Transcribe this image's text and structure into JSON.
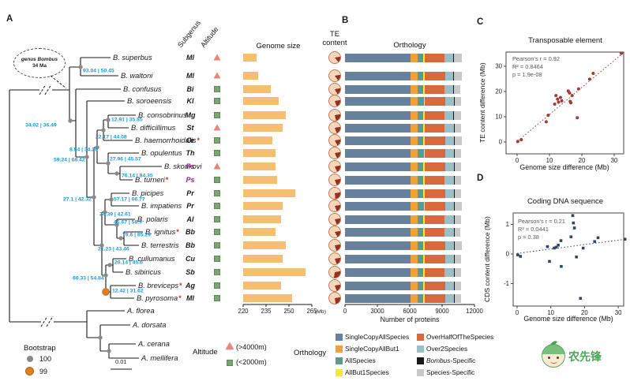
{
  "panels": {
    "a": "A",
    "b": "B",
    "c": "C",
    "d": "D"
  },
  "tree": {
    "bubble_line1": "genus Bombus",
    "bubble_line2": "34 Ma",
    "node_labels": [
      "93.04 | 50.45",
      "34.02 | 36.49",
      "12.91 | 35.85",
      "22.17 | 44.08",
      "8.54 | 34.26",
      "59.24 | 68.42",
      "27.96 | 45.57",
      "76.14 | 84.35",
      "27.1 | 42.32",
      "57.17 | 66.77",
      "24.39 | 42.61",
      "45.67 | 58.3",
      "79.6 | 85.29",
      "21.23 | 43.46",
      "20.14 | 45.6",
      "60.33 | 54.84",
      "12.42 | 31.62"
    ],
    "outgroup": [
      "A. florea",
      "A. dorsata",
      "A. cerana",
      "A. mellifera"
    ],
    "bootstrap": {
      "title": "Bootstrap",
      "level1": "100",
      "level2": "99"
    },
    "scale_bar": "0.01",
    "star_symbol": "*"
  },
  "headers": {
    "subgenus": "Subgenus",
    "altitude": "Altitude",
    "genome": "Genome size",
    "te1": "TE",
    "te2": "content",
    "orthology": "Orthology"
  },
  "species": [
    {
      "name": "B. superbus",
      "star": false,
      "subgenus": "Ml",
      "ps": false,
      "altitude": "high"
    },
    {
      "name": "B. waltoni",
      "star": false,
      "subgenus": "Ml",
      "ps": false,
      "altitude": "high"
    },
    {
      "name": "B. confusus",
      "star": false,
      "subgenus": "Bi",
      "ps": false,
      "altitude": "low"
    },
    {
      "name": "B. soroeensis",
      "star": false,
      "subgenus": "Kl",
      "ps": false,
      "altitude": "low"
    },
    {
      "name": "B. consobrinus",
      "star": false,
      "subgenus": "Mg",
      "ps": false,
      "altitude": "low"
    },
    {
      "name": "B. difficillimus",
      "star": false,
      "subgenus": "St",
      "ps": false,
      "altitude": "high"
    },
    {
      "name": "B. haemorrhoidalis",
      "star": true,
      "subgenus": "Or",
      "ps": false,
      "altitude": "low"
    },
    {
      "name": "B. opulentus",
      "star": false,
      "subgenus": "Th",
      "ps": false,
      "altitude": "low"
    },
    {
      "name": "B. skorikovi",
      "star": false,
      "subgenus": "Ps",
      "ps": true,
      "altitude": "high"
    },
    {
      "name": "B. turneri",
      "star": true,
      "subgenus": "Ps",
      "ps": true,
      "altitude": "low"
    },
    {
      "name": "B. picipes",
      "star": false,
      "subgenus": "Pr",
      "ps": false,
      "altitude": "low"
    },
    {
      "name": "B. impatiens",
      "star": false,
      "subgenus": "Pr",
      "ps": false,
      "altitude": "low"
    },
    {
      "name": "B. polaris",
      "star": false,
      "subgenus": "Al",
      "ps": false,
      "altitude": "low"
    },
    {
      "name": "B. ignitus",
      "star": true,
      "subgenus": "Bb",
      "ps": false,
      "altitude": "low"
    },
    {
      "name": "B. terrestris",
      "star": false,
      "subgenus": "Bb",
      "ps": false,
      "altitude": "low"
    },
    {
      "name": "B. cullumanus",
      "star": false,
      "subgenus": "Cu",
      "ps": false,
      "altitude": "low"
    },
    {
      "name": "B. sibiricus",
      "star": false,
      "subgenus": "Sb",
      "ps": false,
      "altitude": "low"
    },
    {
      "name": "B. breviceps",
      "star": true,
      "subgenus": "Ag",
      "ps": false,
      "altitude": "low"
    },
    {
      "name": "B. pyrosoma",
      "star": true,
      "subgenus": "Ml",
      "ps": false,
      "altitude": "low"
    }
  ],
  "genome_axis": {
    "ticks": [
      220,
      235,
      250,
      265
    ],
    "unit": "(Mb)"
  },
  "orthology_axis": {
    "ticks": [
      0,
      3000,
      6000,
      9000,
      12000
    ],
    "xlabel": "Number of proteins"
  },
  "legends": {
    "altitude": {
      "title": "Altitude",
      "high": "(>4000m)",
      "low": "(<2000m)"
    },
    "orthology_title": "Orthology",
    "orthology_items": [
      {
        "prefix": "",
        "label": "SingleCopyAllSpecies",
        "color": "#67809C"
      },
      {
        "prefix": "",
        "label": "SingleCopyAllBut1",
        "color": "#F0A03C"
      },
      {
        "prefix": "",
        "label": "AllSpecies",
        "color": "#5E9A8C"
      },
      {
        "prefix": "",
        "label": "AllBut1Species",
        "color": "#F5E73C"
      },
      {
        "prefix": "",
        "label": "OverHalfOfTheSpecies",
        "color": "#D8693E"
      },
      {
        "prefix": "",
        "label": "Over2Species",
        "color": "#9BBFC8"
      },
      {
        "prefix": "Bombus",
        "label": "-Specific",
        "color": "#1A1A1A"
      },
      {
        "prefix": "",
        "label": "Species-Specific",
        "color": "#C9C9C9"
      }
    ]
  },
  "scatter_te": {
    "title": "Transposable element",
    "xlabel": "Genome size difference (Mb)",
    "ylabel": "TE content difference (Mb)",
    "stats": [
      "Pearson's r = 0.92",
      "R² = 0.8464",
      "p = 1.9e-08"
    ],
    "xticks": [
      0,
      10,
      20,
      30
    ],
    "yticks": [
      0,
      10,
      20,
      30
    ],
    "point_color": "#A03B35",
    "points": [
      [
        0.2,
        0.2
      ],
      [
        1.3,
        0.9
      ],
      [
        9,
        8
      ],
      [
        9.6,
        10.6
      ],
      [
        11.6,
        15
      ],
      [
        12,
        18.4
      ],
      [
        12.5,
        17
      ],
      [
        12.8,
        15.8
      ],
      [
        13.4,
        17.6
      ],
      [
        13.8,
        16.3
      ],
      [
        15.8,
        20.2
      ],
      [
        16.2,
        19.4
      ],
      [
        16.4,
        16.1
      ],
      [
        16.6,
        15.5
      ],
      [
        17,
        18.4
      ],
      [
        18.6,
        9.6
      ],
      [
        19,
        21
      ],
      [
        22.4,
        24.9
      ],
      [
        23.5,
        27.2
      ],
      [
        32.2,
        35.1
      ]
    ],
    "trend": [
      [
        0.3,
        0.5
      ],
      [
        32.8,
        35.3
      ]
    ]
  },
  "scatter_cds": {
    "title": "Coding DNA sequence",
    "xlabel": "Genome size difference (Mb)",
    "ylabel": "CDS content difference (Mb)",
    "stats": [
      "Pearson's r = 0.21",
      "R² = 0.0441",
      "p = 0.38"
    ],
    "xticks": [
      0,
      10,
      20,
      30
    ],
    "yticks": [
      1,
      0,
      -1
    ],
    "point_color": "#33475F",
    "points": [
      [
        0.2,
        -0.03
      ],
      [
        1,
        -0.08
      ],
      [
        9,
        0.25
      ],
      [
        9.6,
        -0.25
      ],
      [
        11,
        0.2
      ],
      [
        11.6,
        0.23
      ],
      [
        12.2,
        0.3
      ],
      [
        13,
        0.45
      ],
      [
        13.1,
        -0.42
      ],
      [
        16,
        0.58
      ],
      [
        16.5,
        1.3
      ],
      [
        16.7,
        1.05
      ],
      [
        17,
        0.88
      ],
      [
        17.6,
        -0.1
      ],
      [
        18.8,
        -1.5
      ],
      [
        19.6,
        0.2
      ],
      [
        23,
        0.42
      ],
      [
        24,
        0.55
      ],
      [
        32,
        0.5
      ]
    ],
    "trend": [
      [
        0,
        0.02
      ],
      [
        31.5,
        0.49
      ]
    ]
  },
  "watermark": "农先锋",
  "chart_data": [
    {
      "type": "bar",
      "title": "Genome size",
      "xlabel": "Genome size (Mb)",
      "xlim": [
        220,
        265
      ],
      "categories": [
        "B. superbus",
        "B. waltoni",
        "B. confusus",
        "B. soroeensis",
        "B. consobrinus",
        "B. difficillimus",
        "B. haemorrhoidalis",
        "B. opulentus",
        "B. skorikovi",
        "B. turneri",
        "B. picipes",
        "B. impatiens",
        "B. polaris",
        "B. ignitus",
        "B. terrestris",
        "B. cullumanus",
        "B. sibiricus",
        "B. breviceps",
        "B. pyrosoma"
      ],
      "values": [
        229,
        230,
        238,
        243,
        248,
        246,
        239,
        241,
        241,
        242,
        254,
        246,
        245,
        241,
        248,
        246,
        261,
        245,
        252
      ]
    },
    {
      "type": "pie",
      "title": "TE content",
      "unit": "percent of genome",
      "categories": [
        "B. superbus",
        "B. waltoni",
        "B. confusus",
        "B. soroeensis",
        "B. consobrinus",
        "B. difficillimus",
        "B. haemorrhoidalis",
        "B. opulentus",
        "B. skorikovi",
        "B. turneri",
        "B. picipes",
        "B. impatiens",
        "B. polaris",
        "B. ignitus",
        "B. terrestris",
        "B. cullumanus",
        "B. sibiricus",
        "B. breviceps",
        "B. pyrosoma"
      ],
      "values": [
        17,
        18,
        20,
        22,
        24,
        22,
        20,
        21,
        21,
        22,
        26,
        22,
        22,
        20,
        23,
        22,
        30,
        22,
        25
      ]
    },
    {
      "type": "bar",
      "stacked": true,
      "title": "Orthology",
      "xlabel": "Number of proteins",
      "xlim": [
        0,
        12000
      ],
      "categories": [
        "B. superbus",
        "B. waltoni",
        "B. confusus",
        "B. soroeensis",
        "B. consobrinus",
        "B. difficillimus",
        "B. haemorrhoidalis",
        "B. opulentus",
        "B. skorikovi",
        "B. turneri",
        "B. picipes",
        "B. impatiens",
        "B. polaris",
        "B. ignitus",
        "B. terrestris",
        "B. cullumanus",
        "B. sibiricus",
        "B. breviceps",
        "B. pyrosoma"
      ],
      "series": [
        {
          "name": "SingleCopyAllSpecies",
          "values": [
            6100,
            6100,
            6080,
            6090,
            6070,
            6080,
            6060,
            6090,
            6080,
            6070,
            6060,
            6100,
            6070,
            6080,
            6090,
            6070,
            6060,
            6080,
            6070
          ]
        },
        {
          "name": "SingleCopyAllBut1",
          "values": [
            640,
            650,
            650,
            660,
            650,
            660,
            650,
            660,
            650,
            660,
            650,
            660,
            650,
            660,
            650,
            660,
            650,
            660,
            650
          ]
        },
        {
          "name": "AllSpecies",
          "values": [
            520,
            530,
            540,
            540,
            550,
            540,
            550,
            540,
            540,
            550,
            550,
            540,
            550,
            540,
            540,
            550,
            550,
            540,
            550
          ]
        },
        {
          "name": "AllBut1Species",
          "values": [
            110,
            110,
            110,
            110,
            110,
            110,
            110,
            110,
            110,
            110,
            110,
            110,
            110,
            110,
            110,
            110,
            110,
            110,
            110
          ]
        },
        {
          "name": "OverHalfOfTheSpecies",
          "values": [
            1880,
            1870,
            1860,
            1880,
            1850,
            1860,
            1900,
            1870,
            1880,
            1860,
            1890,
            1880,
            1870,
            1860,
            1900,
            1870,
            1880,
            1870,
            1890
          ]
        },
        {
          "name": "Over2Species",
          "values": [
            800,
            790,
            820,
            810,
            830,
            820,
            840,
            820,
            830,
            820,
            830,
            810,
            830,
            820,
            840,
            820,
            830,
            820,
            830
          ]
        },
        {
          "name": "Bombus-Specific",
          "values": [
            70,
            70,
            70,
            70,
            70,
            70,
            70,
            70,
            70,
            70,
            70,
            70,
            70,
            70,
            70,
            70,
            70,
            70,
            70
          ]
        },
        {
          "name": "Species-Specific",
          "values": [
            720,
            700,
            560,
            620,
            640,
            650,
            680,
            600,
            590,
            610,
            580,
            630,
            600,
            570,
            650,
            590,
            620,
            600,
            610
          ]
        }
      ]
    },
    {
      "type": "scatter",
      "title": "Transposable element",
      "xlabel": "Genome size difference (Mb)",
      "ylabel": "TE content difference (Mb)",
      "xlim": [
        0,
        33
      ],
      "ylim": [
        0,
        36
      ],
      "annotations": [
        "Pearson's r = 0.92",
        "R² = 0.8464",
        "p = 1.9e-08"
      ],
      "points": [
        [
          0.2,
          0.2
        ],
        [
          1.3,
          0.9
        ],
        [
          9,
          8
        ],
        [
          9.6,
          10.6
        ],
        [
          11.6,
          15
        ],
        [
          12,
          18.4
        ],
        [
          12.5,
          17
        ],
        [
          12.8,
          15.8
        ],
        [
          13.4,
          17.6
        ],
        [
          13.8,
          16.3
        ],
        [
          15.8,
          20.2
        ],
        [
          16.2,
          19.4
        ],
        [
          16.4,
          16.1
        ],
        [
          16.6,
          15.5
        ],
        [
          17,
          18.4
        ],
        [
          18.6,
          9.6
        ],
        [
          19,
          21
        ],
        [
          22.4,
          24.9
        ],
        [
          23.5,
          27.2
        ],
        [
          32.2,
          35.1
        ]
      ]
    },
    {
      "type": "scatter",
      "title": "Coding DNA sequence",
      "xlabel": "Genome size difference (Mb)",
      "ylabel": "CDS content difference (Mb)",
      "xlim": [
        0,
        33
      ],
      "ylim": [
        -1.6,
        1.5
      ],
      "annotations": [
        "Pearson's r = 0.21",
        "R² = 0.0441",
        "p = 0.38"
      ],
      "points": [
        [
          0.2,
          -0.03
        ],
        [
          1,
          -0.08
        ],
        [
          9,
          0.25
        ],
        [
          9.6,
          -0.25
        ],
        [
          11,
          0.2
        ],
        [
          11.6,
          0.23
        ],
        [
          12.2,
          0.3
        ],
        [
          13,
          0.45
        ],
        [
          13.1,
          -0.42
        ],
        [
          16,
          0.58
        ],
        [
          16.5,
          1.3
        ],
        [
          16.7,
          1.05
        ],
        [
          17,
          0.88
        ],
        [
          17.6,
          -0.1
        ],
        [
          18.8,
          -1.5
        ],
        [
          19.6,
          0.2
        ],
        [
          23,
          0.42
        ],
        [
          24,
          0.55
        ],
        [
          32,
          0.5
        ]
      ]
    }
  ]
}
